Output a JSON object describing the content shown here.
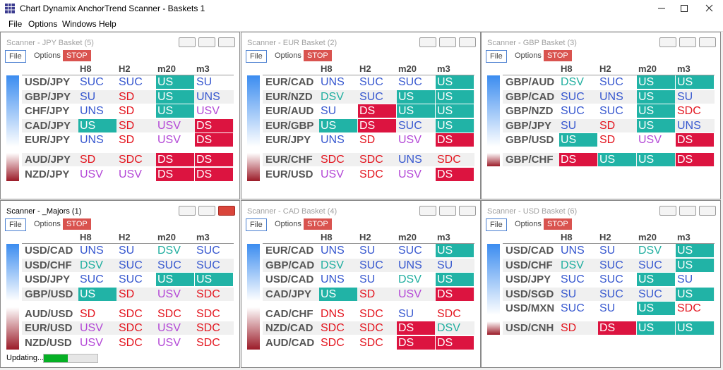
{
  "window": {
    "title": "Chart Dynamix AnchorTrend Scanner - Baskets 1"
  },
  "menu": [
    "File",
    "Options",
    "Windows",
    "Help"
  ],
  "cell_styles": [
    {
      "codes": [
        "US"
      ],
      "background": "#21b3a6",
      "color": "#ffffff"
    },
    {
      "codes": [
        "DS"
      ],
      "background": "#dc1440",
      "color": "#ffffff"
    },
    {
      "codes": [
        "SUC",
        "UNS",
        "SU"
      ],
      "color": "#3657cf"
    },
    {
      "codes": [
        "SD",
        "SDC",
        "DNS"
      ],
      "color": "#e3141e"
    },
    {
      "codes": [
        "USV"
      ],
      "color": "#b347d6"
    },
    {
      "codes": [
        "DSV"
      ],
      "color": "#1fae9f"
    }
  ],
  "panels": [
    {
      "title": "Scanner - JPY Basket (5)",
      "toolbar": [
        "File",
        "Options",
        "STOP"
      ],
      "columns": [
        "H8",
        "H2",
        "m20",
        "m3"
      ],
      "groups": [
        [
          {
            "pair": "USD/JPY",
            "cells": [
              "SUC",
              "SUC",
              "US",
              "SU"
            ]
          },
          {
            "pair": "GBP/JPY",
            "cells": [
              "SU",
              "SD",
              "US",
              "UNS"
            ]
          },
          {
            "pair": "CHF/JPY",
            "cells": [
              "UNS",
              "SD",
              "US",
              "USV"
            ]
          },
          {
            "pair": "CAD/JPY",
            "cells": [
              "US",
              "SD",
              "USV",
              "DS"
            ]
          },
          {
            "pair": "EUR/JPY",
            "cells": [
              "UNS",
              "SD",
              "USV",
              "DS"
            ]
          }
        ],
        [
          {
            "pair": "AUD/JPY",
            "cells": [
              "SD",
              "SDC",
              "DS",
              "DS"
            ]
          },
          {
            "pair": "NZD/JPY",
            "cells": [
              "USV",
              "USV",
              "DS",
              "DS"
            ]
          }
        ]
      ]
    },
    {
      "title": "Scanner - EUR Basket (2)",
      "toolbar": [
        "File",
        "Options",
        "STOP"
      ],
      "columns": [
        "H8",
        "H2",
        "m20",
        "m3"
      ],
      "groups": [
        [
          {
            "pair": "EUR/CAD",
            "cells": [
              "UNS",
              "SUC",
              "SUC",
              "US"
            ]
          },
          {
            "pair": "EUR/NZD",
            "cells": [
              "DSV",
              "SUC",
              "US",
              "US"
            ]
          },
          {
            "pair": "EUR/AUD",
            "cells": [
              "SU",
              "DS",
              "US",
              "US"
            ]
          },
          {
            "pair": "EUR/GBP",
            "cells": [
              "US",
              "DS",
              "SUC",
              "US"
            ]
          },
          {
            "pair": "EUR/JPY",
            "cells": [
              "UNS",
              "SD",
              "USV",
              "DS"
            ]
          }
        ],
        [
          {
            "pair": "EUR/CHF",
            "cells": [
              "SDC",
              "SDC",
              "UNS",
              "SDC"
            ]
          },
          {
            "pair": "EUR/USD",
            "cells": [
              "USV",
              "SDC",
              "USV",
              "DS"
            ]
          }
        ]
      ]
    },
    {
      "title": "Scanner - GBP Basket (3)",
      "toolbar": [
        "File",
        "Options",
        "STOP"
      ],
      "columns": [
        "H8",
        "H2",
        "m20",
        "m3"
      ],
      "groups": [
        [
          {
            "pair": "GBP/AUD",
            "cells": [
              "DSV",
              "SUC",
              "US",
              "US"
            ]
          },
          {
            "pair": "GBP/CAD",
            "cells": [
              "SUC",
              "UNS",
              "US",
              "SU"
            ]
          },
          {
            "pair": "GBP/NZD",
            "cells": [
              "SUC",
              "SUC",
              "US",
              "SDC"
            ]
          },
          {
            "pair": "GBP/JPY",
            "cells": [
              "SU",
              "SD",
              "US",
              "UNS"
            ]
          },
          {
            "pair": "GBP/USD",
            "cells": [
              "US",
              "SD",
              "USV",
              "DS"
            ]
          }
        ],
        [
          {
            "pair": "GBP/CHF",
            "cells": [
              "DS",
              "US",
              "US",
              "DS"
            ]
          }
        ]
      ]
    },
    {
      "title": "Scanner - _Majors (1)",
      "active": true,
      "toolbar": [
        "File",
        "Options",
        "STOP"
      ],
      "columns": [
        "H8",
        "H2",
        "m20",
        "m3"
      ],
      "groups": [
        [
          {
            "pair": "USD/CAD",
            "cells": [
              "UNS",
              "SU",
              "DSV",
              "SUC"
            ]
          },
          {
            "pair": "USD/CHF",
            "cells": [
              "DSV",
              "SUC",
              "SUC",
              "SUC"
            ]
          },
          {
            "pair": "USD/JPY",
            "cells": [
              "SUC",
              "SUC",
              "US",
              "US"
            ]
          },
          {
            "pair": "GBP/USD",
            "cells": [
              "US",
              "SD",
              "USV",
              "SDC"
            ]
          }
        ],
        [
          {
            "pair": "AUD/USD",
            "cells": [
              "SD",
              "SDC",
              "SDC",
              "SDC"
            ]
          },
          {
            "pair": "EUR/USD",
            "cells": [
              "USV",
              "SDC",
              "USV",
              "SDC"
            ]
          },
          {
            "pair": "NZD/USD",
            "cells": [
              "USV",
              "SDC",
              "USV",
              "SDC"
            ]
          }
        ]
      ],
      "status": "Updating..."
    },
    {
      "title": "Scanner - CAD Basket (4)",
      "toolbar": [
        "File",
        "Options",
        "STOP"
      ],
      "columns": [
        "H8",
        "H2",
        "m20",
        "m3"
      ],
      "groups": [
        [
          {
            "pair": "EUR/CAD",
            "cells": [
              "UNS",
              "SU",
              "SUC",
              "US"
            ]
          },
          {
            "pair": "GBP/CAD",
            "cells": [
              "DSV",
              "SUC",
              "UNS",
              "SU"
            ]
          },
          {
            "pair": "USD/CAD",
            "cells": [
              "UNS",
              "SU",
              "DSV",
              "US"
            ]
          },
          {
            "pair": "CAD/JPY",
            "cells": [
              "US",
              "SD",
              "USV",
              "DS"
            ]
          }
        ],
        [
          {
            "pair": "CAD/CHF",
            "cells": [
              "DNS",
              "SDC",
              "SU",
              "SDC"
            ]
          },
          {
            "pair": "NZD/CAD",
            "cells": [
              "SDC",
              "SDC",
              "DS",
              "DSV"
            ]
          },
          {
            "pair": "AUD/CAD",
            "cells": [
              "SDC",
              "SDC",
              "DS",
              "DS"
            ]
          }
        ]
      ]
    },
    {
      "title": "Scanner - USD Basket (6)",
      "toolbar": [
        "File",
        "Options",
        "STOP"
      ],
      "columns": [
        "H8",
        "H2",
        "m20",
        "m3"
      ],
      "groups": [
        [
          {
            "pair": "USD/CAD",
            "cells": [
              "UNS",
              "SU",
              "DSV",
              "US"
            ]
          },
          {
            "pair": "USD/CHF",
            "cells": [
              "DSV",
              "SUC",
              "SUC",
              "US"
            ]
          },
          {
            "pair": "USD/JPY",
            "cells": [
              "SUC",
              "SUC",
              "US",
              "SU"
            ]
          },
          {
            "pair": "USD/SGD",
            "cells": [
              "SU",
              "SUC",
              "SUC",
              "US"
            ]
          },
          {
            "pair": "USD/MXN",
            "cells": [
              "SUC",
              "SU",
              "US",
              "SDC"
            ]
          }
        ],
        [
          {
            "pair": "USD/CNH",
            "cells": [
              "SD",
              "DS",
              "US",
              "US"
            ]
          }
        ]
      ]
    }
  ]
}
